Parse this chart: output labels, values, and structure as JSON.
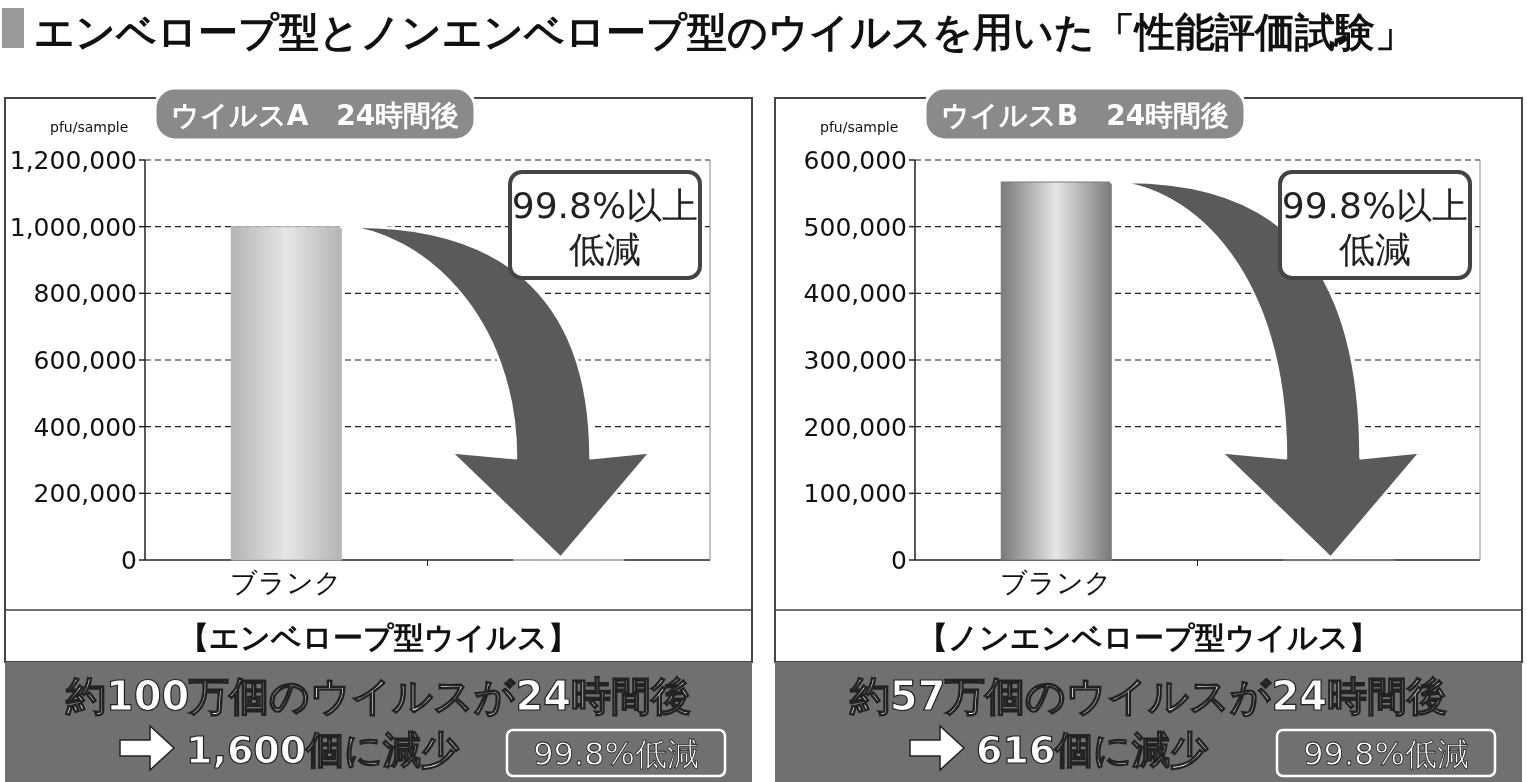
{
  "chart_data": [
    {
      "type": "bar",
      "title": "エンベロープ型とノンエンベロープ型のウイルスを用いた「性能評価試験」",
      "subtitle": "ウイルスA　24時間後",
      "ylabel": "pfu/sample",
      "categories": [
        "ブランク",
        null
      ],
      "values": [
        1000000,
        1600
      ],
      "color": "#b4b4b4",
      "ylim": [
        0,
        1200000
      ],
      "yticks": [
        {
          "value": 0,
          "label": "0"
        },
        {
          "value": 200000,
          "label": "200,000"
        },
        {
          "value": 400000,
          "label": "400,000"
        },
        {
          "value": 600000,
          "label": "600,000"
        },
        {
          "value": 800000,
          "label": "800,000"
        },
        {
          "value": 1000000,
          "label": "1,000,000"
        },
        {
          "value": 1200000,
          "label": "1,200,000"
        }
      ],
      "grid": "y",
      "annotations": [
        "99.8%以上",
        "低減",
        "【エンベロープ型ウイルス】",
        "約100万個のウイルスが24時間後",
        "1,600個に減少",
        "99.8%低減"
      ]
    },
    {
      "type": "bar",
      "subtitle": "ウイルスB　24時間後",
      "ylabel": "pfu/sample",
      "categories": [
        "ブランク",
        null
      ],
      "values": [
        567000,
        616
      ],
      "color": "#7a7a7a",
      "ylim": [
        0,
        600000
      ],
      "yticks": [
        {
          "value": 0,
          "label": "0"
        },
        {
          "value": 100000,
          "label": "100,000"
        },
        {
          "value": 200000,
          "label": "200,000"
        },
        {
          "value": 300000,
          "label": "300,000"
        },
        {
          "value": 400000,
          "label": "400,000"
        },
        {
          "value": 500000,
          "label": "500,000"
        },
        {
          "value": 600000,
          "label": "600,000"
        }
      ],
      "grid": "y",
      "annotations": [
        "99.8%以上",
        "低減",
        "【ノンエンベロープ型ウイルス】",
        "約57万個のウイルスが24時間後",
        "616個に減少",
        "99.8%低減"
      ]
    }
  ]
}
